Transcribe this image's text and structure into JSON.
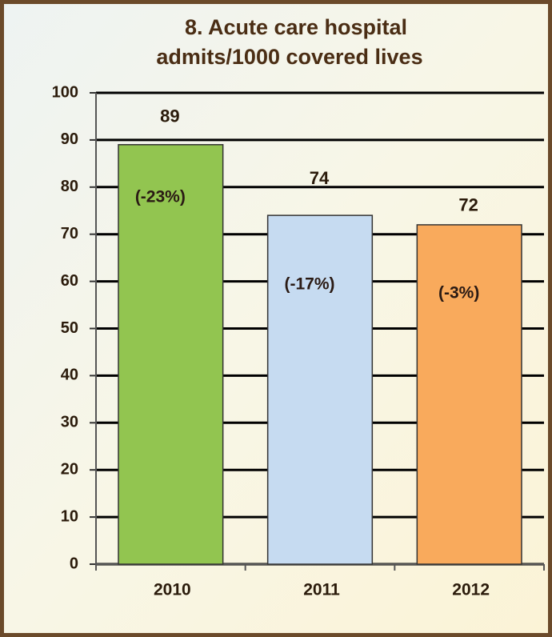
{
  "chart_data": {
    "type": "bar",
    "title": [
      "8. Acute care hospital",
      "admits/1000 covered lives"
    ],
    "categories": [
      "2010",
      "2011",
      "2012"
    ],
    "values": [
      89,
      74,
      72
    ],
    "colors": [
      "#92c550",
      "#c6dbf1",
      "#f9aa5c"
    ],
    "annotations": [
      "(-23%)",
      "(-17%)",
      "(-3%)"
    ],
    "ylim": [
      0,
      100
    ],
    "yticks": [
      0,
      10,
      20,
      30,
      40,
      50,
      60,
      70,
      80,
      90,
      100
    ],
    "grid": true
  }
}
